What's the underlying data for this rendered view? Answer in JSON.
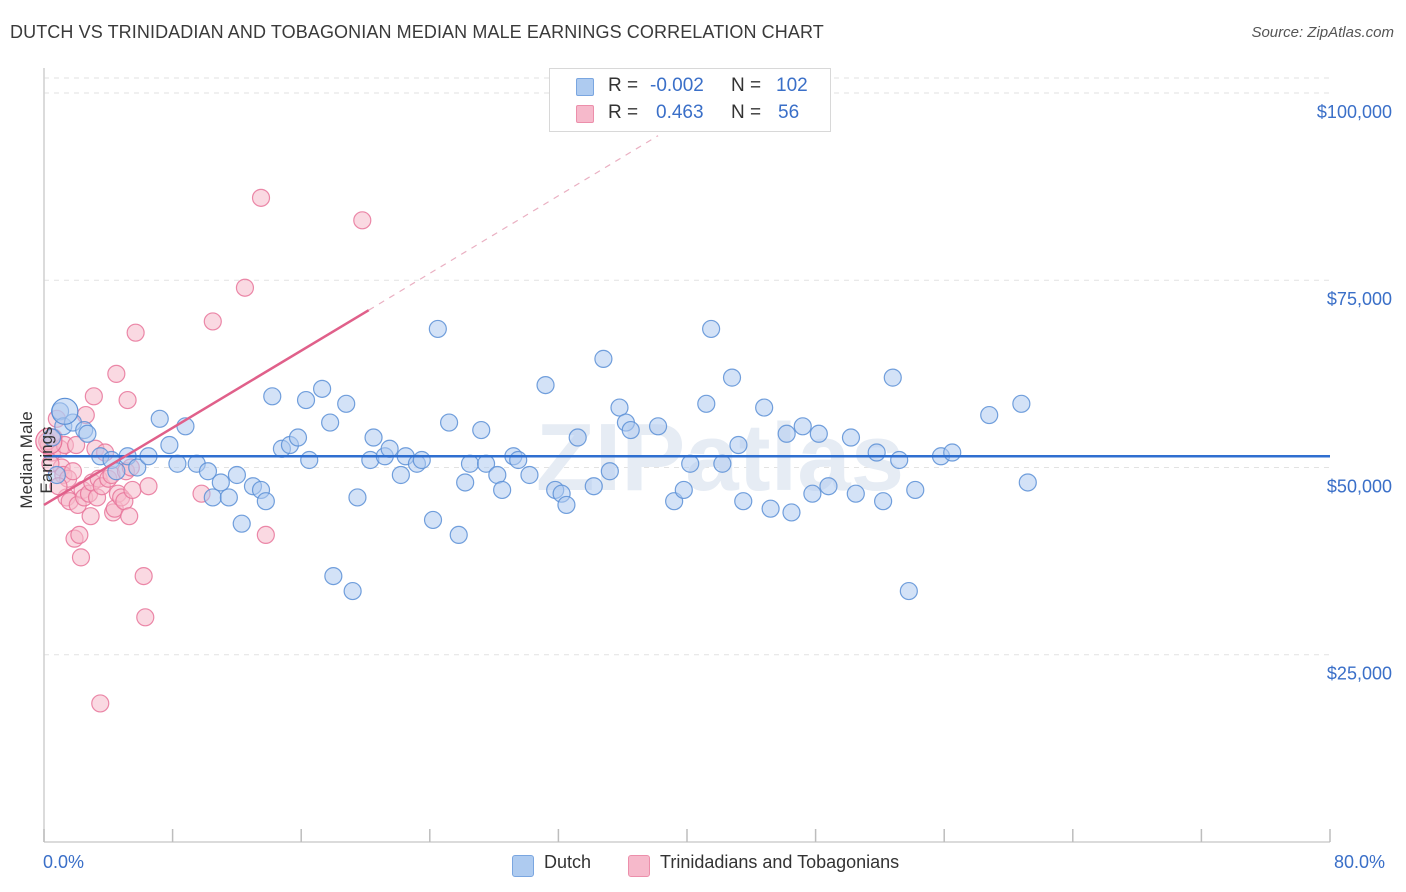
{
  "header": {
    "title": "DUTCH VS TRINIDADIAN AND TOBAGONIAN MEDIAN MALE EARNINGS CORRELATION CHART",
    "source": "Source: ZipAtlas.com"
  },
  "watermark": "ZIPatlas",
  "legend": {
    "rows": [
      {
        "r_label": "R =",
        "r_value": "-0.002",
        "n_label": "N =",
        "n_value": "102",
        "color": "#aecbf0"
      },
      {
        "r_label": "R =",
        "r_value": "0.463",
        "n_label": "N =",
        "n_value": "56",
        "color": "#f6b9cb"
      }
    ]
  },
  "bottom_legend": {
    "items": [
      {
        "label": "Dutch",
        "color": "#aecbf0"
      },
      {
        "label": "Trinidadians and Tobagonians",
        "color": "#f6b9cb"
      }
    ]
  },
  "chart_data": {
    "type": "scatter",
    "title": "DUTCH VS TRINIDADIAN AND TOBAGONIAN MEDIAN MALE EARNINGS CORRELATION CHART",
    "xlabel": "",
    "ylabel": "Median Male Earnings",
    "x_tick_labels": [
      "0.0%",
      "80.0%"
    ],
    "y_tick_labels": [
      "$25,000",
      "$50,000",
      "$75,000",
      "$100,000"
    ],
    "y_ticks": [
      25000,
      50000,
      75000,
      100000
    ],
    "xlim": [
      0,
      80
    ],
    "ylim": [
      0,
      102000
    ],
    "grid": true,
    "legend_position": "top-center",
    "series": [
      {
        "name": "Dutch",
        "color": "#5a8fd6",
        "fill": "#aecbf0",
        "trend": {
          "x": [
            0,
            80
          ],
          "y": [
            51500,
            51500
          ]
        },
        "points": [
          [
            1.0,
            57500
          ],
          [
            1.2,
            55500
          ],
          [
            1.8,
            56000
          ],
          [
            2.5,
            55000
          ],
          [
            2.7,
            54500
          ],
          [
            3.5,
            51500
          ],
          [
            4.2,
            51000
          ],
          [
            4.5,
            49500
          ],
          [
            5.2,
            51500
          ],
          [
            5.8,
            50000
          ],
          [
            6.5,
            51500
          ],
          [
            7.2,
            56500
          ],
          [
            7.8,
            53000
          ],
          [
            8.3,
            50500
          ],
          [
            8.8,
            55500
          ],
          [
            9.5,
            50500
          ],
          [
            10.2,
            49500
          ],
          [
            10.5,
            46000
          ],
          [
            11.0,
            48000
          ],
          [
            11.5,
            46000
          ],
          [
            12.0,
            49000
          ],
          [
            12.3,
            42500
          ],
          [
            13.0,
            47500
          ],
          [
            13.5,
            47000
          ],
          [
            13.8,
            45500
          ],
          [
            14.2,
            59500
          ],
          [
            14.8,
            52500
          ],
          [
            15.3,
            53000
          ],
          [
            15.8,
            54000
          ],
          [
            16.3,
            59000
          ],
          [
            16.5,
            51000
          ],
          [
            17.3,
            60500
          ],
          [
            17.8,
            56000
          ],
          [
            18.0,
            35500
          ],
          [
            18.8,
            58500
          ],
          [
            19.2,
            33500
          ],
          [
            19.5,
            46000
          ],
          [
            20.3,
            51000
          ],
          [
            20.5,
            54000
          ],
          [
            21.2,
            51500
          ],
          [
            21.5,
            52500
          ],
          [
            22.2,
            49000
          ],
          [
            22.5,
            51500
          ],
          [
            23.2,
            50500
          ],
          [
            23.5,
            51000
          ],
          [
            24.2,
            43000
          ],
          [
            24.5,
            68500
          ],
          [
            25.2,
            56000
          ],
          [
            25.8,
            41000
          ],
          [
            26.2,
            48000
          ],
          [
            26.5,
            50500
          ],
          [
            27.2,
            55000
          ],
          [
            27.5,
            50500
          ],
          [
            28.2,
            49000
          ],
          [
            28.5,
            47000
          ],
          [
            29.2,
            51500
          ],
          [
            29.5,
            51000
          ],
          [
            30.2,
            49000
          ],
          [
            31.2,
            61000
          ],
          [
            31.8,
            47000
          ],
          [
            32.2,
            46500
          ],
          [
            32.5,
            45000
          ],
          [
            33.2,
            54000
          ],
          [
            34.2,
            47500
          ],
          [
            34.8,
            64500
          ],
          [
            35.2,
            49500
          ],
          [
            35.8,
            58000
          ],
          [
            36.2,
            56000
          ],
          [
            36.5,
            55000
          ],
          [
            38.2,
            55500
          ],
          [
            39.2,
            45500
          ],
          [
            39.8,
            47000
          ],
          [
            40.2,
            50500
          ],
          [
            41.2,
            58500
          ],
          [
            41.5,
            68500
          ],
          [
            42.2,
            50500
          ],
          [
            42.8,
            62000
          ],
          [
            43.2,
            53000
          ],
          [
            43.5,
            45500
          ],
          [
            44.8,
            58000
          ],
          [
            45.2,
            44500
          ],
          [
            46.2,
            54500
          ],
          [
            46.5,
            44000
          ],
          [
            47.2,
            55500
          ],
          [
            47.8,
            46500
          ],
          [
            48.2,
            54500
          ],
          [
            48.8,
            47500
          ],
          [
            50.2,
            54000
          ],
          [
            50.5,
            46500
          ],
          [
            51.8,
            52000
          ],
          [
            52.2,
            45500
          ],
          [
            52.8,
            62000
          ],
          [
            53.2,
            51000
          ],
          [
            53.8,
            33500
          ],
          [
            54.2,
            47000
          ],
          [
            55.8,
            51500
          ],
          [
            56.5,
            52000
          ],
          [
            58.8,
            57000
          ],
          [
            60.8,
            58500
          ],
          [
            61.2,
            48000
          ],
          [
            0.5,
            54000
          ],
          [
            0.8,
            49000
          ]
        ]
      },
      {
        "name": "Trinidadians and Tobagonians",
        "color": "#e8749a",
        "fill": "#f6b9cb",
        "trend": {
          "x": [
            0,
            20.2
          ],
          "y": [
            45000,
            71000
          ]
        },
        "trend_extension": {
          "x": [
            20.2,
            38.2
          ],
          "y": [
            71000,
            94300
          ]
        },
        "points": [
          [
            0.3,
            53000
          ],
          [
            0.5,
            52000
          ],
          [
            0.6,
            54000
          ],
          [
            0.8,
            56500
          ],
          [
            1.0,
            52500
          ],
          [
            1.1,
            50000
          ],
          [
            1.2,
            49000
          ],
          [
            1.3,
            53000
          ],
          [
            1.4,
            46000
          ],
          [
            1.5,
            48500
          ],
          [
            1.6,
            45500
          ],
          [
            1.8,
            49500
          ],
          [
            1.9,
            40500
          ],
          [
            2.0,
            53000
          ],
          [
            2.1,
            45000
          ],
          [
            2.2,
            41000
          ],
          [
            2.3,
            38000
          ],
          [
            2.4,
            47000
          ],
          [
            2.5,
            46000
          ],
          [
            2.6,
            57000
          ],
          [
            2.8,
            46500
          ],
          [
            2.9,
            43500
          ],
          [
            3.0,
            48000
          ],
          [
            3.1,
            59500
          ],
          [
            3.2,
            52500
          ],
          [
            3.3,
            46000
          ],
          [
            3.4,
            48500
          ],
          [
            3.5,
            18500
          ],
          [
            3.6,
            47500
          ],
          [
            3.8,
            52000
          ],
          [
            4.0,
            48500
          ],
          [
            4.2,
            49000
          ],
          [
            4.3,
            44000
          ],
          [
            4.4,
            44500
          ],
          [
            4.5,
            62500
          ],
          [
            4.6,
            46500
          ],
          [
            4.8,
            46000
          ],
          [
            5.0,
            45500
          ],
          [
            5.1,
            49500
          ],
          [
            5.2,
            59000
          ],
          [
            5.3,
            43500
          ],
          [
            5.4,
            50000
          ],
          [
            5.5,
            47000
          ],
          [
            5.7,
            68000
          ],
          [
            6.2,
            35500
          ],
          [
            6.3,
            30000
          ],
          [
            6.5,
            47500
          ],
          [
            9.8,
            46500
          ],
          [
            10.5,
            69500
          ],
          [
            12.5,
            74000
          ],
          [
            13.5,
            86000
          ],
          [
            13.8,
            41000
          ],
          [
            19.8,
            83000
          ],
          [
            0.2,
            53500
          ],
          [
            0.4,
            50500
          ],
          [
            0.9,
            47500
          ]
        ]
      }
    ]
  }
}
